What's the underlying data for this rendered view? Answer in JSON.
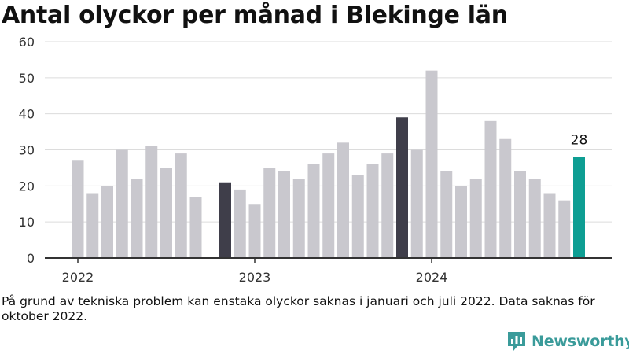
{
  "title": "Antal olyckor per månad i Blekinge län",
  "note": "På grund av tekniska problem kan enstaka olyckor saknas i januari och juli 2022. Data saknas för oktober 2022.",
  "brand": {
    "name": "Newsworthy",
    "icon": "newsworthy-logo-icon"
  },
  "colors": {
    "default": "#c9c8ce",
    "highlight": "#3f3e4a",
    "latest": "#0e9e93"
  },
  "chart_data": {
    "type": "bar",
    "title": "Antal olyckor per månad i Blekinge län",
    "xlabel": "",
    "ylabel": "",
    "ylim": [
      0,
      60
    ],
    "yticks": [
      "0",
      "10",
      "20",
      "30",
      "40",
      "50",
      "60"
    ],
    "xtick_labels": [
      {
        "label": "2022",
        "month_index": 0
      },
      {
        "label": "2023",
        "month_index": 12
      },
      {
        "label": "2024",
        "month_index": 24
      }
    ],
    "grid": true,
    "categories": [
      "2022-01",
      "2022-02",
      "2022-03",
      "2022-04",
      "2022-05",
      "2022-06",
      "2022-07",
      "2022-08",
      "2022-09",
      "2022-10",
      "2022-11",
      "2022-12",
      "2023-01",
      "2023-02",
      "2023-03",
      "2023-04",
      "2023-05",
      "2023-06",
      "2023-07",
      "2023-08",
      "2023-09",
      "2023-10",
      "2023-11",
      "2023-12",
      "2024-01",
      "2024-02",
      "2024-03",
      "2024-04",
      "2024-05",
      "2024-06",
      "2024-07",
      "2024-08",
      "2024-09",
      "2024-10",
      "2024-11"
    ],
    "values": [
      27,
      18,
      20,
      30,
      22,
      31,
      25,
      29,
      17,
      null,
      21,
      19,
      15,
      25,
      24,
      22,
      26,
      29,
      32,
      23,
      26,
      29,
      39,
      30,
      52,
      24,
      20,
      22,
      38,
      33,
      24,
      22,
      18,
      16,
      28
    ],
    "highlight": [
      "2022-11",
      "2023-11"
    ],
    "latest": "2024-11",
    "value_labels": [
      {
        "category": "2024-11",
        "text": "28"
      }
    ]
  }
}
